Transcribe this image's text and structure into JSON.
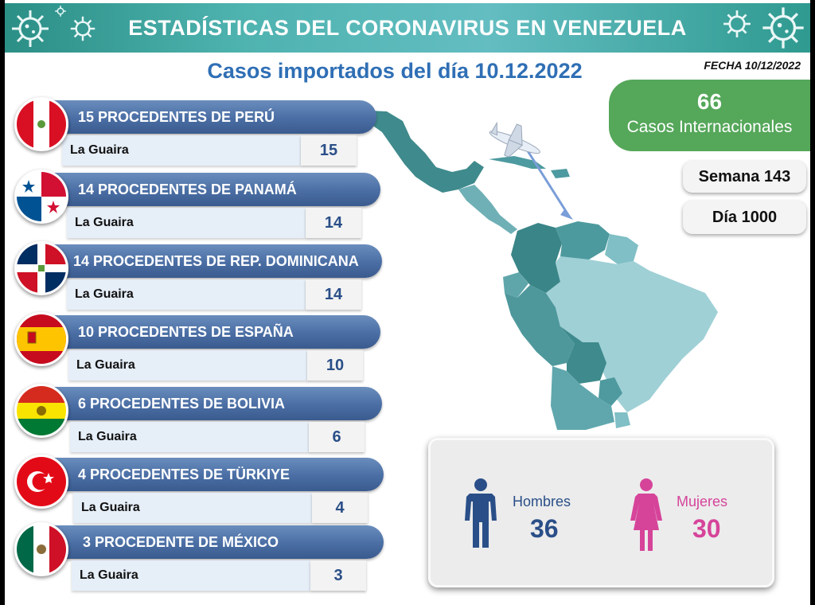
{
  "header": {
    "title": "ESTADÍSTICAS DEL CORONAVIRUS EN VENEZUELA",
    "icon": "virus-icon"
  },
  "subtitle": "Casos importados del día 10.12.2022",
  "fecha": "FECHA 10/12/2022",
  "international": {
    "count": "66",
    "label": "Casos Internacionales"
  },
  "semana": "Semana 143",
  "dia": "Día 1000",
  "rows": [
    {
      "title": "15 PROCEDENTES DE PERÚ",
      "location": "La Guaira",
      "value": "15",
      "flag": "peru-flag"
    },
    {
      "title": "14 PROCEDENTES DE PANAMÁ",
      "location": "La Guaira",
      "value": "14",
      "flag": "panama-flag"
    },
    {
      "title": "14 PROCEDENTES DE REP. DOMINICANA",
      "location": "La Guaira",
      "value": "14",
      "flag": "dominican-republic-flag"
    },
    {
      "title": "10 PROCEDENTES DE ESPAÑA",
      "location": "La Guaira",
      "value": "10",
      "flag": "spain-flag"
    },
    {
      "title": "6 PROCEDENTES DE BOLIVIA",
      "location": "La Guaira",
      "value": "6",
      "flag": "bolivia-flag"
    },
    {
      "title": "4 PROCEDENTES DE TÜRKIYE",
      "location": "La Guaira",
      "value": "4",
      "flag": "turkiye-flag"
    },
    {
      "title": "3 PROCEDENTE DE MÉXICO",
      "location": "La Guaira",
      "value": "3",
      "flag": "mexico-flag"
    }
  ],
  "gender": {
    "men": {
      "label": "Hombres",
      "value": "36",
      "color": "#2a4f88",
      "icon": "man-icon"
    },
    "women": {
      "label": "Mujeres",
      "value": "30",
      "color": "#d6449a",
      "icon": "woman-icon"
    }
  },
  "colors": {
    "header": "#4fb3b0",
    "bar": "#4a6ea4",
    "international": "#55a75a",
    "subtitle": "#2f6fb5"
  },
  "map": {
    "icon": "latin-america-map",
    "plane": "airplane-icon"
  }
}
